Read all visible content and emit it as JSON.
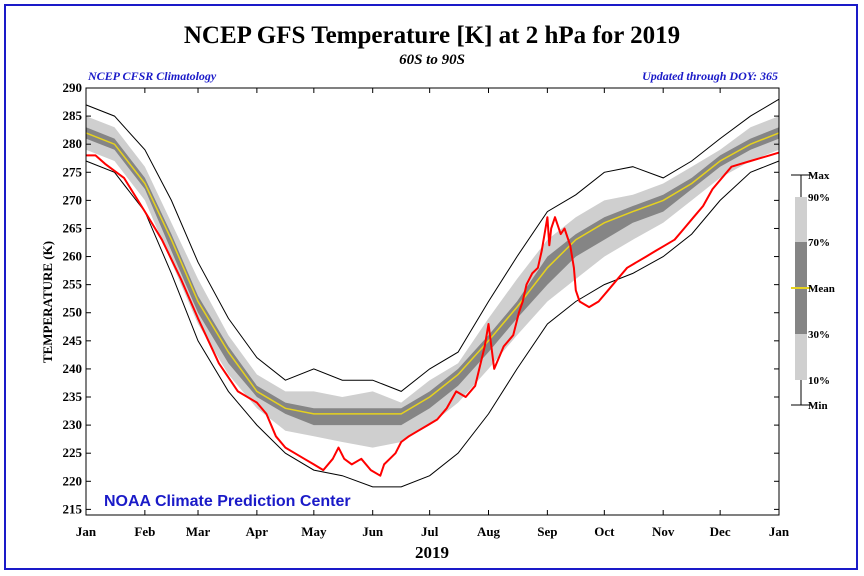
{
  "header": {
    "title": "NCEP GFS Temperature [K] at 2 hPa for 2019",
    "subtitle": "60S to 90S",
    "left_note": "NCEP CFSR Climatology",
    "right_note": "Updated through DOY: 365"
  },
  "watermark": "NOAA Climate Prediction Center",
  "colors": {
    "frame": "#1a1ac8",
    "band_10_90": "#cfcfcf",
    "band_30_70": "#858585",
    "mean": "#e6d21e",
    "observed": "#ff0000",
    "minmax": "#000000"
  },
  "chart_data": {
    "type": "line",
    "title": "NCEP GFS Temperature [K] at 2 hPa for 2019",
    "xlabel": "2019",
    "ylabel": "TEMPERATURE (K)",
    "xlim": [
      0,
      365
    ],
    "ylim": [
      214,
      290
    ],
    "grid": false,
    "x_ticks": [
      {
        "label": "Jan",
        "x": 0
      },
      {
        "label": "Feb",
        "x": 31
      },
      {
        "label": "Mar",
        "x": 59
      },
      {
        "label": "Apr",
        "x": 90
      },
      {
        "label": "May",
        "x": 120
      },
      {
        "label": "Jun",
        "x": 151
      },
      {
        "label": "Jul",
        "x": 181
      },
      {
        "label": "Aug",
        "x": 212
      },
      {
        "label": "Sep",
        "x": 243
      },
      {
        "label": "Oct",
        "x": 273
      },
      {
        "label": "Nov",
        "x": 304
      },
      {
        "label": "Dec",
        "x": 334
      },
      {
        "label": "Jan",
        "x": 365
      }
    ],
    "y_ticks": [
      215,
      220,
      225,
      230,
      235,
      240,
      245,
      250,
      255,
      260,
      265,
      270,
      275,
      280,
      285,
      290
    ],
    "legend": {
      "placement": "right",
      "labels": {
        "max": "Max",
        "p90": "90%",
        "p70": "70%",
        "mean": "Mean",
        "p30": "30%",
        "p10": "10%",
        "min": "Min"
      }
    },
    "climatology": {
      "day": [
        0,
        15,
        31,
        45,
        59,
        75,
        90,
        105,
        120,
        135,
        151,
        166,
        181,
        196,
        212,
        227,
        243,
        258,
        273,
        288,
        304,
        319,
        334,
        350,
        365
      ],
      "max": [
        287,
        285,
        279,
        270,
        259,
        249,
        242,
        238,
        240,
        238,
        238,
        236,
        240,
        243,
        252,
        260,
        268,
        271,
        275,
        276,
        274,
        277,
        281,
        285,
        288
      ],
      "p90": [
        285,
        283,
        276,
        266,
        256,
        246,
        239,
        236,
        236,
        235,
        236,
        234,
        238,
        241,
        249,
        256,
        263,
        267,
        270,
        271,
        273,
        276,
        279,
        283,
        285
      ],
      "p70": [
        283,
        281,
        274,
        264,
        253,
        244,
        237,
        234,
        233,
        233,
        233,
        233,
        236,
        240,
        246,
        252,
        260,
        264,
        267,
        269,
        271,
        274,
        278,
        281,
        283
      ],
      "mean": [
        282,
        280,
        273,
        263,
        252,
        243,
        236,
        233,
        232,
        232,
        232,
        232,
        235,
        239,
        245,
        251,
        258,
        263,
        266,
        268,
        270,
        273,
        277,
        280,
        282
      ],
      "p30": [
        281,
        279,
        272,
        261,
        250,
        241,
        235,
        232,
        230,
        230,
        230,
        230,
        233,
        237,
        243,
        249,
        255,
        260,
        263,
        266,
        268,
        272,
        276,
        279,
        281
      ],
      "p10": [
        279,
        277,
        270,
        259,
        248,
        239,
        233,
        229,
        228,
        227,
        226,
        227,
        230,
        234,
        240,
        246,
        252,
        256,
        260,
        263,
        266,
        270,
        274,
        277,
        279
      ],
      "min": [
        277,
        275,
        268,
        257,
        245,
        236,
        230,
        225,
        222,
        221,
        219,
        219,
        221,
        225,
        232,
        240,
        248,
        252,
        255,
        257,
        260,
        264,
        270,
        275,
        277
      ]
    },
    "observed": {
      "name": "2019",
      "x": [
        0,
        5,
        10,
        20,
        31,
        40,
        50,
        59,
        70,
        80,
        90,
        95,
        100,
        105,
        110,
        115,
        120,
        125,
        130,
        133,
        136,
        140,
        145,
        150,
        155,
        157,
        160,
        163,
        166,
        170,
        175,
        180,
        185,
        190,
        195,
        200,
        205,
        210,
        212,
        215,
        220,
        225,
        228,
        230,
        232,
        235,
        238,
        240,
        242,
        243,
        244,
        245,
        247,
        248,
        250,
        252,
        255,
        257,
        258,
        260,
        265,
        270,
        275,
        280,
        285,
        290,
        295,
        300,
        305,
        310,
        315,
        320,
        325,
        330,
        335,
        340,
        345,
        350,
        355,
        360,
        365
      ],
      "y": [
        278,
        278,
        276.5,
        274,
        268,
        263,
        256,
        249,
        241,
        236,
        234,
        232,
        228,
        226,
        225,
        224,
        223,
        222,
        224,
        226,
        224,
        223,
        224,
        222,
        221,
        223,
        224,
        225,
        227,
        228,
        229,
        230,
        231,
        233,
        236,
        235,
        237,
        244,
        248,
        240,
        244,
        246,
        250,
        252,
        255,
        257,
        258,
        261,
        265,
        267,
        262,
        265,
        267,
        266,
        264,
        265,
        262,
        258,
        254,
        252,
        251,
        252,
        254,
        256,
        258,
        259,
        260,
        261,
        262,
        263,
        265,
        267,
        269,
        272,
        274,
        276,
        276.5,
        277,
        277.5,
        278,
        278.5
      ]
    }
  }
}
